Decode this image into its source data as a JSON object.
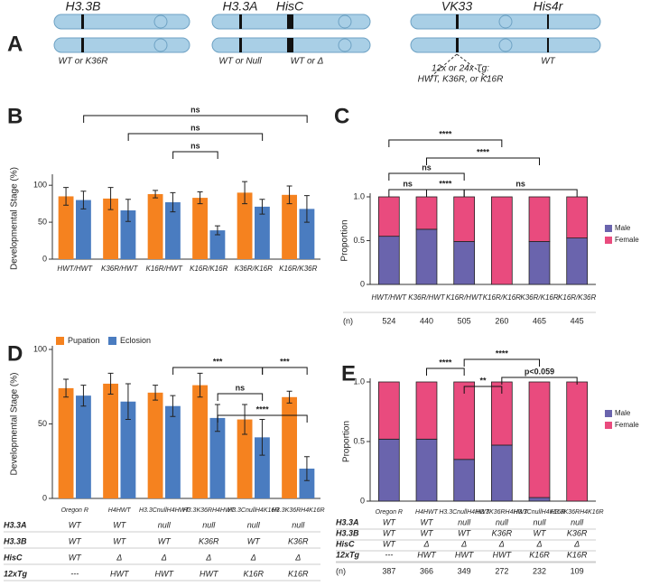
{
  "panel_labels": [
    "A",
    "B",
    "C",
    "D",
    "E"
  ],
  "diagram": {
    "genes": [
      "H3.3B",
      "H3.3A",
      "HisC",
      "VK33",
      "His4r"
    ],
    "alleles": [
      "WT or K36R",
      "WT or Null",
      "WT or Δ",
      "WT"
    ],
    "transgene": [
      "12x or 24x Tg:",
      "HWT, K36R, or K16R"
    ]
  },
  "chart_data": [
    {
      "type": "bar",
      "ylabel": "Developmental Stage (%)",
      "categories": [
        "HWT/HWT",
        "K36R/HWT",
        "K16R/HWT",
        "K16R/K16R",
        "K36R/K16R",
        "K16R/K36R"
      ],
      "series": [
        {
          "color": "#f5821f",
          "values": [
            85,
            82,
            88,
            83,
            90,
            87
          ],
          "errors": [
            12,
            15,
            5,
            8,
            15,
            12
          ]
        },
        {
          "color": "#4a7cc0",
          "values": [
            80,
            66,
            77,
            39,
            71,
            68
          ],
          "errors": [
            12,
            15,
            13,
            6,
            10,
            18
          ]
        }
      ],
      "ylim": [
        0,
        110
      ],
      "yticks": [
        0,
        50,
        100
      ],
      "annotations": [
        "ns",
        "ns",
        "ns"
      ]
    },
    {
      "type": "stacked_bar",
      "ylabel": "Proportion",
      "categories": [
        "HWT/HWT",
        "K36R/HWT",
        "K16R/HWT",
        "K16R/K16R",
        "K36R/K16R",
        "K16R/K36R"
      ],
      "series": [
        {
          "name": "Male",
          "color": "#6a64ad",
          "values": [
            0.55,
            0.63,
            0.49,
            0,
            0.49,
            0.53
          ]
        },
        {
          "name": "Female",
          "color": "#e94b7e",
          "values": [
            0.45,
            0.37,
            0.51,
            1,
            0.51,
            0.47
          ]
        }
      ],
      "ylim": [
        0,
        1
      ],
      "yticks": [
        0,
        0.5,
        {
          "value": 1,
          "label": "1.0"
        }
      ],
      "n_label": "(n)",
      "n": [
        524,
        440,
        505,
        260,
        465,
        445
      ],
      "legend": "right",
      "annotations": [
        "****",
        "****",
        "ns",
        "ns",
        "****",
        "ns"
      ]
    },
    {
      "type": "bar",
      "ylabel": "Developmental Stage (%)",
      "categories": [
        "Oregon R",
        "H4HWT",
        "H3.3CnullH4HWT",
        "H3.3K36RH4HWT",
        "H3.3CnullH4K16R",
        "H3.3K36RH4K16R"
      ],
      "series": [
        {
          "name": "Pupation",
          "color": "#f5821f",
          "values": [
            74,
            77,
            71,
            76,
            53,
            68
          ],
          "errors": [
            6,
            7,
            5,
            8,
            10,
            4
          ]
        },
        {
          "name": "Eclosion",
          "color": "#4a7cc0",
          "values": [
            69,
            65,
            62,
            54,
            41,
            20
          ],
          "errors": [
            7,
            12,
            7,
            9,
            12,
            8
          ]
        }
      ],
      "ylim": [
        0,
        100
      ],
      "yticks": [
        0,
        50,
        100
      ],
      "legend": "top-left",
      "table": [
        {
          "label": "H3.3A",
          "cells": [
            "WT",
            "WT",
            "null",
            "null",
            "null",
            "null"
          ]
        },
        {
          "label": "H3.3B",
          "cells": [
            "WT",
            "WT",
            "WT",
            "K36R",
            "WT",
            "K36R"
          ]
        },
        {
          "label": "HisC",
          "cells": [
            "WT",
            "Δ",
            "Δ",
            "Δ",
            "Δ",
            "Δ"
          ]
        },
        {
          "label": "12xTg",
          "cells": [
            "---",
            "HWT",
            "HWT",
            "HWT",
            "K16R",
            "K16R"
          ]
        }
      ],
      "annotations": [
        "***",
        "ns",
        "****",
        "***"
      ]
    },
    {
      "type": "stacked_bar",
      "ylabel": "Proportion",
      "categories": [
        "Oregon R",
        "H4HWT",
        "H3.3CnullH4HWT",
        "H3.3K36RH4HWT",
        "H3.3CnullH4K16R",
        "H3.3K36RH4K16R"
      ],
      "series": [
        {
          "name": "Male",
          "color": "#6a64ad",
          "values": [
            0.52,
            0.52,
            0.35,
            0.47,
            0.03,
            0
          ]
        },
        {
          "name": "Female",
          "color": "#e94b7e",
          "values": [
            0.48,
            0.48,
            0.65,
            0.53,
            0.97,
            1
          ]
        }
      ],
      "ylim": [
        0,
        1
      ],
      "yticks": [
        0,
        0.5,
        {
          "value": 1,
          "label": "1.0"
        }
      ],
      "legend": "right",
      "table": [
        {
          "label": "H3.3A",
          "cells": [
            "WT",
            "WT",
            "null",
            "null",
            "null",
            "null"
          ]
        },
        {
          "label": "H3.3B",
          "cells": [
            "WT",
            "WT",
            "WT",
            "K36R",
            "WT",
            "K36R"
          ]
        },
        {
          "label": "HisC",
          "cells": [
            "WT",
            "Δ",
            "Δ",
            "Δ",
            "Δ",
            "Δ"
          ]
        },
        {
          "label": "12xTg",
          "cells": [
            "---",
            "HWT",
            "HWT",
            "HWT",
            "K16R",
            "K16R"
          ]
        }
      ],
      "n_label": "(n)",
      "n": [
        387,
        366,
        349,
        272,
        232,
        109
      ],
      "annotations": [
        "****",
        "****",
        "**",
        "p<0.059"
      ]
    }
  ]
}
